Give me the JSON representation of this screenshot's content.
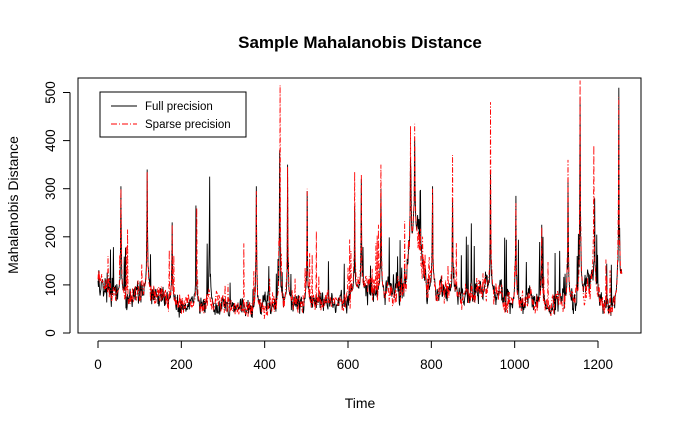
{
  "chart_data": {
    "type": "line",
    "title": "Sample Mahalanobis Distance",
    "xlabel": "Time",
    "ylabel": "Mahalanobis Distance",
    "xlim": [
      0,
      1260
    ],
    "ylim": [
      0,
      525
    ],
    "xticks": [
      0,
      200,
      400,
      600,
      800,
      1000,
      1200
    ],
    "yticks": [
      0,
      100,
      200,
      300,
      400,
      500
    ],
    "grid": false,
    "legend_position": "top-left",
    "series": [
      {
        "name": "Full precision",
        "color": "#000000",
        "style": "solid",
        "n": 1258,
        "baseline": [
          [
            0,
            100
          ],
          [
            40,
            85
          ],
          [
            80,
            80
          ],
          [
            120,
            95
          ],
          [
            160,
            75
          ],
          [
            200,
            55
          ],
          [
            260,
            65
          ],
          [
            320,
            55
          ],
          [
            370,
            48
          ],
          [
            400,
            60
          ],
          [
            460,
            70
          ],
          [
            520,
            65
          ],
          [
            580,
            60
          ],
          [
            620,
            90
          ],
          [
            700,
            85
          ],
          [
            740,
            110
          ],
          [
            760,
            230
          ],
          [
            790,
            95
          ],
          [
            840,
            85
          ],
          [
            880,
            75
          ],
          [
            920,
            95
          ],
          [
            960,
            80
          ],
          [
            1000,
            65
          ],
          [
            1040,
            70
          ],
          [
            1080,
            55
          ],
          [
            1120,
            70
          ],
          [
            1150,
            75
          ],
          [
            1180,
            110
          ],
          [
            1200,
            90
          ],
          [
            1230,
            40
          ],
          [
            1258,
            120
          ]
        ],
        "spikes": [
          [
            55,
            305
          ],
          [
            118,
            340
          ],
          [
            178,
            230
          ],
          [
            235,
            265
          ],
          [
            268,
            325
          ],
          [
            380,
            305
          ],
          [
            436,
            380
          ],
          [
            455,
            350
          ],
          [
            502,
            295
          ],
          [
            616,
            265
          ],
          [
            632,
            320
          ],
          [
            679,
            300
          ],
          [
            750,
            365
          ],
          [
            760,
            400
          ],
          [
            803,
            305
          ],
          [
            851,
            275
          ],
          [
            942,
            330
          ],
          [
            1003,
            285
          ],
          [
            1065,
            225
          ],
          [
            1128,
            315
          ],
          [
            1157,
            490
          ],
          [
            1192,
            280
          ],
          [
            1250,
            510
          ]
        ]
      },
      {
        "name": "Sparse precision",
        "color": "#ff0000",
        "style": "dashdot",
        "n": 1258,
        "baseline": [
          [
            0,
            100
          ],
          [
            40,
            85
          ],
          [
            80,
            80
          ],
          [
            120,
            95
          ],
          [
            160,
            75
          ],
          [
            200,
            55
          ],
          [
            260,
            65
          ],
          [
            320,
            55
          ],
          [
            370,
            48
          ],
          [
            400,
            60
          ],
          [
            460,
            70
          ],
          [
            520,
            65
          ],
          [
            580,
            60
          ],
          [
            620,
            90
          ],
          [
            700,
            85
          ],
          [
            740,
            110
          ],
          [
            760,
            230
          ],
          [
            790,
            95
          ],
          [
            840,
            85
          ],
          [
            880,
            75
          ],
          [
            920,
            95
          ],
          [
            960,
            80
          ],
          [
            1000,
            65
          ],
          [
            1040,
            70
          ],
          [
            1080,
            55
          ],
          [
            1120,
            70
          ],
          [
            1150,
            75
          ],
          [
            1180,
            110
          ],
          [
            1200,
            90
          ],
          [
            1230,
            40
          ],
          [
            1258,
            120
          ]
        ],
        "spikes": [
          [
            55,
            300
          ],
          [
            118,
            335
          ],
          [
            178,
            225
          ],
          [
            237,
            260
          ],
          [
            380,
            295
          ],
          [
            437,
            515
          ],
          [
            455,
            345
          ],
          [
            502,
            300
          ],
          [
            616,
            335
          ],
          [
            632,
            330
          ],
          [
            679,
            350
          ],
          [
            750,
            430
          ],
          [
            760,
            435
          ],
          [
            803,
            300
          ],
          [
            851,
            370
          ],
          [
            942,
            480
          ],
          [
            1003,
            270
          ],
          [
            1065,
            220
          ],
          [
            1128,
            360
          ],
          [
            1157,
            525
          ],
          [
            1190,
            390
          ],
          [
            1250,
            490
          ]
        ]
      }
    ]
  }
}
